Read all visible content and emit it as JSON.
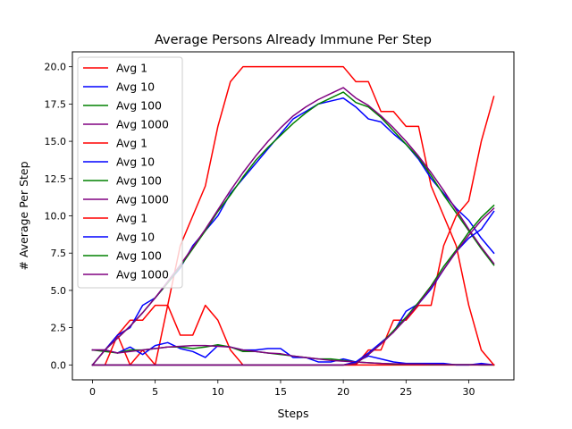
{
  "chart_data": {
    "type": "line",
    "title": "Average Persons Already Immune Per Step",
    "xlabel": "Steps",
    "ylabel": "# Average Per Step",
    "xlim": [
      -1.6,
      33.6
    ],
    "ylim": [
      -1.0,
      21.0
    ],
    "xticks": [
      0,
      5,
      10,
      15,
      20,
      25,
      30
    ],
    "yticks": [
      0.0,
      2.5,
      5.0,
      7.5,
      10.0,
      12.5,
      15.0,
      17.5,
      20.0
    ],
    "xtick_labels": [
      "0",
      "5",
      "10",
      "15",
      "20",
      "25",
      "30"
    ],
    "ytick_labels": [
      "0.0",
      "2.5",
      "5.0",
      "7.5",
      "10.0",
      "12.5",
      "15.0",
      "17.5",
      "20.0"
    ],
    "grid": false,
    "legend_position": "top-left",
    "x": [
      0,
      1,
      2,
      3,
      4,
      5,
      6,
      7,
      8,
      9,
      10,
      11,
      12,
      13,
      14,
      15,
      16,
      17,
      18,
      19,
      20,
      21,
      22,
      23,
      24,
      25,
      26,
      27,
      28,
      29,
      30,
      31,
      32
    ],
    "series": [
      {
        "name": "Avg 1",
        "color": "#ff0000",
        "values": [
          1,
          1,
          2,
          0,
          1,
          0,
          4,
          2,
          2,
          4,
          3,
          1,
          0,
          0,
          0,
          0,
          0,
          0,
          0,
          0,
          0,
          0,
          0,
          0,
          0,
          0,
          0,
          0,
          0,
          0,
          0,
          0,
          0
        ]
      },
      {
        "name": "Avg 10",
        "color": "#0000ff",
        "values": [
          1,
          1,
          0.8,
          1.2,
          0.7,
          1.3,
          1.5,
          1.1,
          0.9,
          0.5,
          1.3,
          1.2,
          1.0,
          1.0,
          1.1,
          1.1,
          0.5,
          0.5,
          0.2,
          0.2,
          0.4,
          0.2,
          0.6,
          0.4,
          0.2,
          0.1,
          0.1,
          0.1,
          0.1,
          0,
          0,
          0.1,
          0
        ]
      },
      {
        "name": "Avg 100",
        "color": "#008000",
        "values": [
          1,
          0.9,
          0.8,
          1.0,
          1.0,
          1.1,
          1.2,
          1.2,
          1.1,
          1.2,
          1.35,
          1.2,
          0.9,
          0.9,
          0.8,
          0.7,
          0.6,
          0.5,
          0.4,
          0.4,
          0.3,
          0.2,
          0.15,
          0.1,
          0.05,
          0.05,
          0.05,
          0.02,
          0.02,
          0.02,
          0.02,
          0,
          0
        ]
      },
      {
        "name": "Avg 1000",
        "color": "#800080",
        "values": [
          1,
          1,
          0.8,
          0.9,
          1.0,
          1.1,
          1.2,
          1.25,
          1.3,
          1.3,
          1.25,
          1.2,
          1.0,
          0.9,
          0.8,
          0.75,
          0.6,
          0.5,
          0.4,
          0.3,
          0.25,
          0.2,
          0.15,
          0.1,
          0.08,
          0.06,
          0.05,
          0.04,
          0.03,
          0.02,
          0.02,
          0.01,
          0.01
        ]
      },
      {
        "name": "Avg 1",
        "color": "#ff0000",
        "values": [
          0,
          0,
          2,
          3,
          3,
          4,
          4,
          8,
          10,
          12,
          16,
          19,
          20,
          20,
          20,
          20,
          20,
          20,
          20,
          20,
          20,
          19,
          19,
          17,
          17,
          16,
          16,
          12,
          10,
          8,
          4,
          1,
          0
        ]
      },
      {
        "name": "Avg 10",
        "color": "#0000ff",
        "values": [
          0,
          1,
          2,
          2.5,
          4,
          4.5,
          5.5,
          6.5,
          8,
          9,
          10,
          11.5,
          12.5,
          13.5,
          14.5,
          15.5,
          16.5,
          17,
          17.5,
          17.7,
          17.9,
          17.3,
          16.5,
          16.3,
          15.5,
          14.8,
          13.8,
          12.5,
          11.5,
          10.5,
          9.7,
          8.5,
          7.5
        ]
      },
      {
        "name": "Avg 100",
        "color": "#008000",
        "values": [
          0,
          1,
          1.8,
          2.6,
          3.5,
          4.5,
          5.5,
          6.6,
          7.8,
          9,
          10.3,
          11.4,
          12.6,
          13.7,
          14.6,
          15.4,
          16.2,
          16.9,
          17.5,
          17.9,
          18.3,
          17.6,
          17.3,
          16.6,
          15.7,
          14.8,
          13.9,
          12.7,
          11.4,
          10.2,
          9.0,
          7.8,
          6.7
        ]
      },
      {
        "name": "Avg 1000",
        "color": "#800080",
        "values": [
          0,
          1,
          1.8,
          2.6,
          3.5,
          4.5,
          5.6,
          6.7,
          7.9,
          9.1,
          10.4,
          11.7,
          12.9,
          14.0,
          15.0,
          15.9,
          16.7,
          17.3,
          17.8,
          18.2,
          18.6,
          17.9,
          17.4,
          16.7,
          15.9,
          15.0,
          14.0,
          12.9,
          11.7,
          10.4,
          9.1,
          7.9,
          6.8
        ]
      },
      {
        "name": "Avg 1",
        "color": "#ff0000",
        "values": [
          0,
          0,
          0,
          0,
          0,
          0,
          0,
          0,
          0,
          0,
          0,
          0,
          0,
          0,
          0,
          0,
          0,
          0,
          0,
          0,
          0,
          0,
          1,
          1,
          3,
          3,
          4,
          4,
          8,
          10,
          11,
          15,
          18
        ]
      },
      {
        "name": "Avg 10",
        "color": "#0000ff",
        "values": [
          0,
          0,
          0,
          0,
          0,
          0,
          0,
          0,
          0,
          0,
          0,
          0,
          0,
          0,
          0,
          0,
          0,
          0,
          0,
          0,
          0,
          0.2,
          0.8,
          1.5,
          2.2,
          3.6,
          4.1,
          5.1,
          6.4,
          7.6,
          8.5,
          9.1,
          10.3
        ]
      },
      {
        "name": "Avg 100",
        "color": "#008000",
        "values": [
          0,
          0,
          0,
          0,
          0,
          0,
          0,
          0,
          0,
          0,
          0,
          0,
          0,
          0,
          0,
          0,
          0,
          0,
          0,
          0,
          0,
          0.1,
          0.7,
          1.4,
          2.3,
          3.2,
          4.2,
          5.3,
          6.6,
          7.7,
          8.9,
          9.9,
          10.7
        ]
      },
      {
        "name": "Avg 1000",
        "color": "#800080",
        "values": [
          0,
          0,
          0,
          0,
          0,
          0,
          0,
          0,
          0,
          0,
          0,
          0,
          0,
          0,
          0,
          0,
          0,
          0,
          0,
          0,
          0,
          0.1,
          0.7,
          1.4,
          2.2,
          3.1,
          4.1,
          5.2,
          6.4,
          7.6,
          8.7,
          9.7,
          10.5
        ]
      }
    ]
  }
}
